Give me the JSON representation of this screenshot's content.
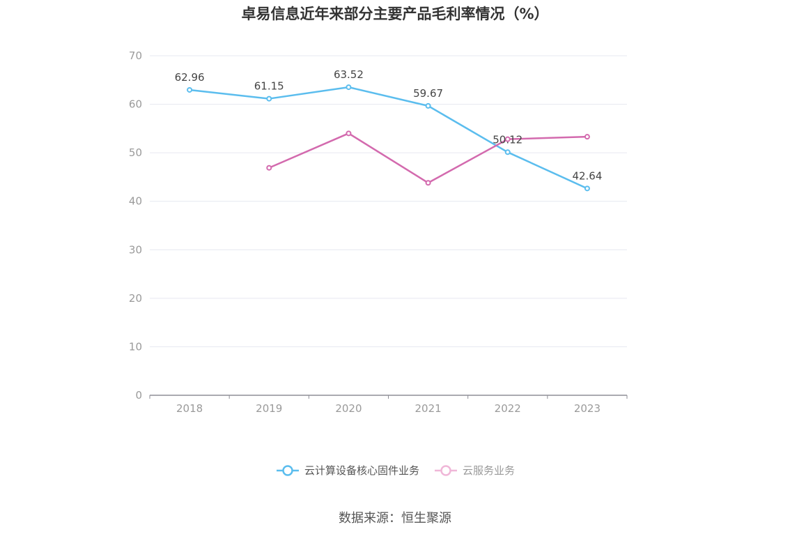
{
  "chart_data": {
    "type": "line",
    "title": "卓易信息近年来部分主要产品毛利率情况（%）",
    "x": [
      "2018",
      "2019",
      "2020",
      "2021",
      "2022",
      "2023"
    ],
    "ylim": [
      0,
      70
    ],
    "yticks": [
      "0",
      "10",
      "20",
      "30",
      "40",
      "50",
      "60",
      "70"
    ],
    "grid": true,
    "legend_position": "bottom",
    "series": [
      {
        "name": "云计算设备核心固件业务",
        "color": "#5bbdee",
        "values": [
          62.96,
          61.15,
          63.52,
          59.67,
          50.12,
          42.64
        ],
        "labels": [
          "62.96",
          "61.15",
          "63.52",
          "59.67",
          "50.12",
          "42.64"
        ]
      },
      {
        "name": "云服务业务",
        "color": "#d36aae",
        "legend_color": "#f0b7d8",
        "values": [
          null,
          46.9,
          54.0,
          43.8,
          52.8,
          53.3
        ]
      }
    ]
  },
  "source": "数据来源：恒生聚源"
}
